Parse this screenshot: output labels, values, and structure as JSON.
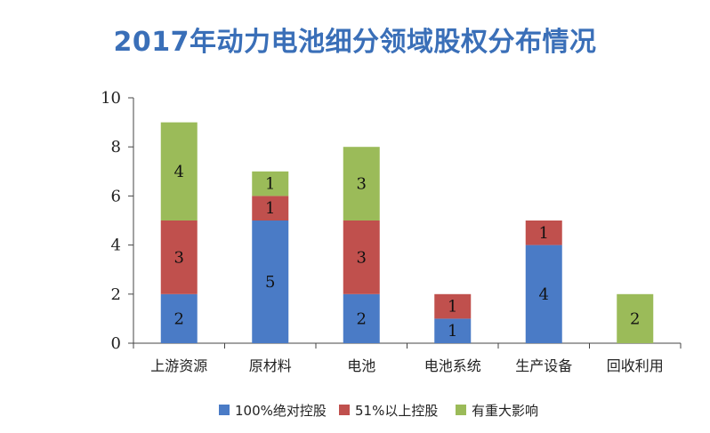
{
  "page": {
    "title": "2017年动力电池细分领域股权分布情况"
  },
  "chart_data": {
    "type": "bar",
    "stacked": true,
    "title": "2017年动力电池细分领域股权分布情况",
    "categories": [
      "上游资源",
      "原材料",
      "电池",
      "电池系统",
      "生产设备",
      "回收利用"
    ],
    "series": [
      {
        "name": "100%绝对控股",
        "color": "#4a7bc6",
        "values": [
          2,
          5,
          2,
          1,
          4,
          0
        ]
      },
      {
        "name": "51%以上控股",
        "color": "#c0504d",
        "values": [
          3,
          1,
          3,
          1,
          1,
          0
        ]
      },
      {
        "name": "有重大影响",
        "color": "#9bbb59",
        "values": [
          4,
          1,
          3,
          0,
          0,
          2
        ]
      }
    ],
    "ylim": [
      0,
      10
    ],
    "yticks": [
      0,
      2,
      4,
      6,
      8,
      10
    ],
    "grid": false,
    "legend": "bottom"
  }
}
